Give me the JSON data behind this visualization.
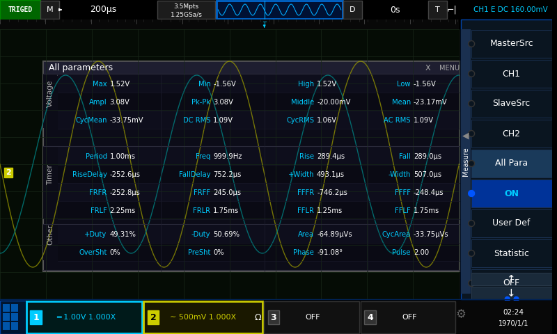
{
  "bg_color": "#000000",
  "screen_bg": "#0a0a14",
  "grid_color": "#1a2a1a",
  "cyan_color": "#00ccff",
  "yellow_color": "#cccc00",
  "white_color": "#ffffff",
  "label_color": "#aaaaaa",
  "panel_title": "All parameters",
  "sections": {
    "Voltage": {
      "rows": [
        [
          [
            "Max",
            "1.52V"
          ],
          [
            "Min",
            "-1.56V"
          ],
          [
            "High",
            "1.52V"
          ],
          [
            "Low",
            "-1.56V"
          ]
        ],
        [
          [
            "Ampl",
            "3.08V"
          ],
          [
            "Pk-Pk",
            "3.08V"
          ],
          [
            "Middle",
            "-20.00mV"
          ],
          [
            "Mean",
            "-23.17mV"
          ]
        ],
        [
          [
            "CycMean",
            "-33.75mV"
          ],
          [
            "DC RMS",
            "1.09V"
          ],
          [
            "CycRMS",
            "1.06V"
          ],
          [
            "AC RMS",
            "1.09V"
          ]
        ]
      ]
    },
    "Timer": {
      "rows": [
        [
          [
            "Period",
            "1.00ms"
          ],
          [
            "Freq",
            "999.9Hz"
          ],
          [
            "Rise",
            "289.4μs"
          ],
          [
            "Fall",
            "289.0μs"
          ]
        ],
        [
          [
            "RiseDelay",
            "-252.6μs"
          ],
          [
            "FallDelay",
            "752.2μs"
          ],
          [
            "+Width",
            "493.1μs"
          ],
          [
            "-Width",
            "507.0μs"
          ]
        ],
        [
          [
            "FRFR",
            "-252.8μs"
          ],
          [
            "FRFF",
            "245.0μs"
          ],
          [
            "FFFR",
            "-746.2μs"
          ],
          [
            "FFFF",
            "-248.4μs"
          ]
        ],
        [
          [
            "FRLF",
            "2.25ms"
          ],
          [
            "FRLR",
            "1.75ms"
          ],
          [
            "FFLR",
            "1.25ms"
          ],
          [
            "FFLF",
            "1.75ms"
          ]
        ]
      ]
    },
    "Other": {
      "rows": [
        [
          [
            "+Duty",
            "49.31%"
          ],
          [
            "-Duty",
            "50.69%"
          ],
          [
            "Area",
            "-64.89μVs"
          ],
          [
            "CycArea",
            "-33.75μVs"
          ]
        ],
        [
          [
            "OverSht",
            "0%"
          ],
          [
            "PreSht",
            "0%"
          ],
          [
            "Phase",
            "-91.08°"
          ],
          [
            "Pulse",
            "2.00"
          ]
        ]
      ]
    }
  },
  "bottom_bar": {
    "ch1_text": "═ 1.00V 1.000X",
    "ch2_text": "∼ 500mV 1.000X"
  },
  "sidebar_items": [
    "MasterSrc",
    "CH1",
    "SlaveSrc",
    "CH2",
    "All Para",
    "ON",
    "User Def",
    "Statistic",
    "OFF"
  ],
  "sidebar_selected": [
    false,
    false,
    false,
    false,
    true,
    false,
    false,
    false,
    false
  ],
  "sidebar_active": [
    false,
    false,
    false,
    false,
    false,
    true,
    false,
    false,
    false
  ]
}
